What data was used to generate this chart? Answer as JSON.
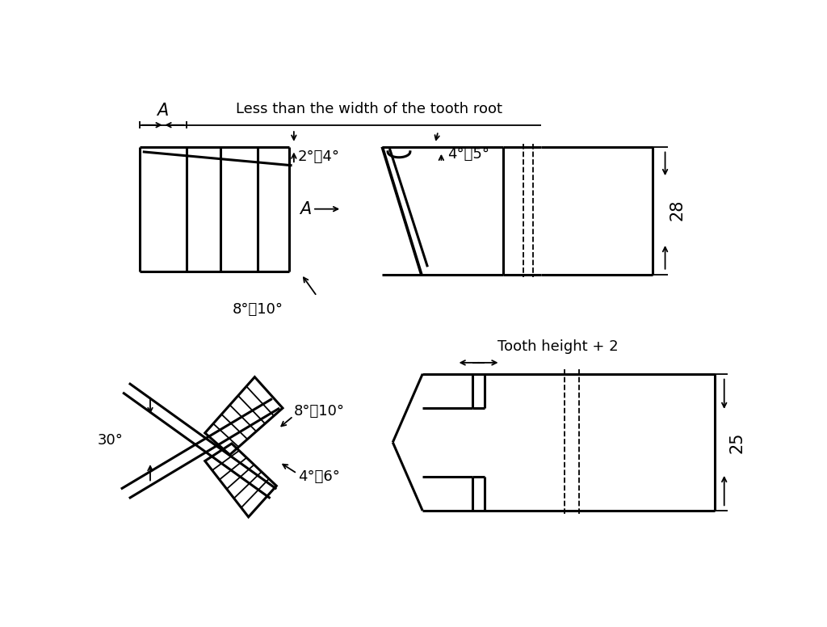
{
  "bg_color": "#ffffff",
  "lc": "#000000",
  "lw": 2.2,
  "tlw": 1.3,
  "fs": 13,
  "lfs": 15,
  "texts": {
    "less_than": "Less than the width of the tooth root",
    "A": "A",
    "angle_2_4": "2°～4°",
    "angle_4_5": "4°～5°",
    "angle_8_10": "8°～10°",
    "angle_8_10b": "8°～10°",
    "angle_4_6": "4°～6°",
    "angle_30": "30°",
    "dim_28": "28",
    "dim_25": "25",
    "tooth_height": "Tooth height + 2"
  }
}
